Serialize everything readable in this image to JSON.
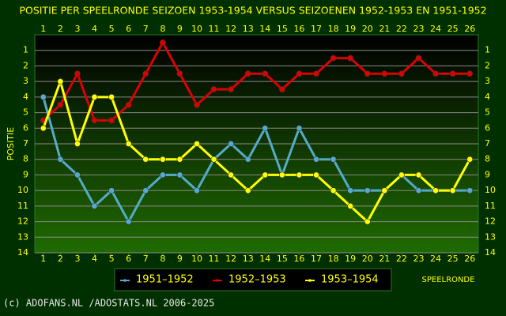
{
  "chart_data": {
    "type": "line",
    "title": "POSITIE PER SPEELRONDE SEIZOEN 1953-1954 VERSUS SEIZOENEN 1952-1953 EN 1951-1952",
    "x_label": "SPEELRONDE",
    "y_label": "POSITIE",
    "footer": "(c) ADOFANS.NL /ADOSTATS.NL 2006-2025",
    "x": [
      1,
      2,
      3,
      4,
      5,
      6,
      7,
      8,
      9,
      10,
      11,
      12,
      13,
      14,
      15,
      16,
      17,
      18,
      19,
      20,
      21,
      22,
      23,
      24,
      25,
      26
    ],
    "xlim": [
      0.5,
      26.5
    ],
    "xticks": [
      1,
      2,
      3,
      4,
      5,
      6,
      7,
      8,
      9,
      10,
      11,
      12,
      13,
      14,
      15,
      16,
      17,
      18,
      19,
      20,
      21,
      22,
      23,
      24,
      25,
      26
    ],
    "ylim": [
      0,
      14
    ],
    "y_inverted": true,
    "yticks": [
      1,
      2,
      3,
      4,
      5,
      6,
      7,
      8,
      9,
      10,
      11,
      12,
      13,
      14
    ],
    "grid": true,
    "series": [
      {
        "name": "1951–1952",
        "color": "#55aacc",
        "values": [
          4,
          8,
          9,
          11,
          10,
          12,
          10,
          9,
          9,
          10,
          8,
          7,
          8,
          6,
          9,
          6,
          8,
          8,
          10,
          10,
          10,
          9,
          10,
          10,
          10,
          10
        ]
      },
      {
        "name": "1952–1953",
        "color": "#dd0000",
        "values": [
          5.5,
          4.5,
          2.5,
          5.5,
          5.5,
          4.5,
          2.5,
          0.5,
          2.5,
          4.5,
          3.5,
          3.5,
          2.5,
          2.5,
          3.5,
          2.5,
          2.5,
          1.5,
          1.5,
          2.5,
          2.5,
          2.5,
          1.5,
          2.5,
          2.5,
          2.5
        ]
      },
      {
        "name": "1953–1954",
        "color": "#ffff00",
        "values": [
          6,
          3,
          7,
          4,
          4,
          7,
          8,
          8,
          8,
          7,
          8,
          9,
          10,
          9,
          9,
          9,
          9,
          10,
          11,
          12,
          10,
          9,
          9,
          10,
          10,
          8
        ]
      }
    ]
  }
}
